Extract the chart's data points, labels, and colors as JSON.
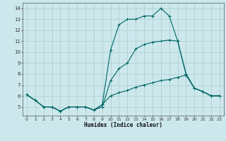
{
  "xlabel": "Humidex (Indice chaleur)",
  "bg_color": "#cce8ec",
  "grid_color": "#aacccc",
  "line_color": "#006666",
  "xlim": [
    -0.5,
    23.5
  ],
  "ylim": [
    4.2,
    14.5
  ],
  "yticks": [
    5,
    6,
    7,
    8,
    9,
    10,
    11,
    12,
    13,
    14
  ],
  "xticks": [
    0,
    1,
    2,
    3,
    4,
    5,
    6,
    7,
    8,
    9,
    10,
    11,
    12,
    13,
    14,
    15,
    16,
    17,
    18,
    19,
    20,
    21,
    22,
    23
  ],
  "lines": [
    {
      "x": [
        0,
        1,
        2,
        3,
        4,
        5,
        6,
        7,
        8,
        9,
        10,
        11,
        12,
        13,
        14,
        15,
        16,
        17,
        18,
        19,
        20,
        21,
        22,
        23
      ],
      "y": [
        6.1,
        5.6,
        5.0,
        5.0,
        4.6,
        5.0,
        5.0,
        5.0,
        4.7,
        5.2,
        10.2,
        12.5,
        13.0,
        13.0,
        13.3,
        13.3,
        14.0,
        13.3,
        11.0,
        8.0,
        6.7,
        6.4,
        6.0,
        6.0
      ]
    },
    {
      "x": [
        0,
        1,
        2,
        3,
        4,
        5,
        6,
        7,
        8,
        9,
        10,
        11,
        12,
        13,
        14,
        15,
        16,
        17,
        18,
        19,
        20,
        21,
        22,
        23
      ],
      "y": [
        6.1,
        5.6,
        5.0,
        5.0,
        4.6,
        5.0,
        5.0,
        5.0,
        4.7,
        5.0,
        7.4,
        8.5,
        9.0,
        10.3,
        10.7,
        10.9,
        11.0,
        11.1,
        11.0,
        8.0,
        6.7,
        6.4,
        6.0,
        6.0
      ]
    },
    {
      "x": [
        0,
        1,
        2,
        3,
        4,
        5,
        6,
        7,
        8,
        9,
        10,
        11,
        12,
        13,
        14,
        15,
        16,
        17,
        18,
        19,
        20,
        21,
        22,
        23
      ],
      "y": [
        6.1,
        5.6,
        5.0,
        5.0,
        4.6,
        5.0,
        5.0,
        5.0,
        4.7,
        5.2,
        6.0,
        6.3,
        6.5,
        6.8,
        7.0,
        7.2,
        7.4,
        7.5,
        7.7,
        7.9,
        6.7,
        6.4,
        6.0,
        6.0
      ]
    }
  ]
}
